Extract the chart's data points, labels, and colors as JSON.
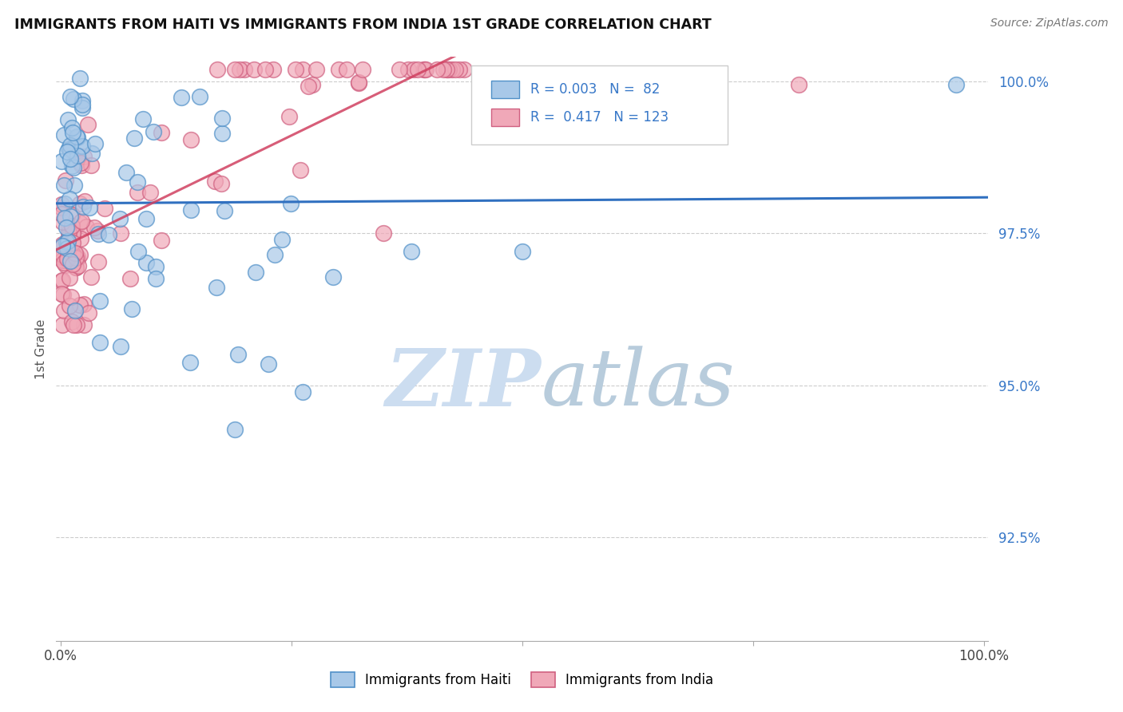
{
  "title": "IMMIGRANTS FROM HAITI VS IMMIGRANTS FROM INDIA 1ST GRADE CORRELATION CHART",
  "source": "Source: ZipAtlas.com",
  "ylabel": "1st Grade",
  "ylim": [
    0.908,
    1.004
  ],
  "yticks": [
    0.925,
    0.95,
    0.975,
    1.0
  ],
  "ytick_labels": [
    "92.5%",
    "95.0%",
    "97.5%",
    "100.0%"
  ],
  "xlim": [
    -0.005,
    1.005
  ],
  "xticks": [
    0.0,
    0.25,
    0.5,
    0.75,
    1.0
  ],
  "xtick_labels": [
    "0.0%",
    "",
    "",
    "",
    "100.0%"
  ],
  "legend_r_haiti": "0.003",
  "legend_n_haiti": "82",
  "legend_r_india": "0.417",
  "legend_n_india": "123",
  "haiti_fill_color": "#a8c8e8",
  "india_fill_color": "#f0a8b8",
  "haiti_edge_color": "#5090c8",
  "india_edge_color": "#d06080",
  "haiti_line_color": "#3070c0",
  "india_line_color": "#d04060",
  "legend_haiti_fill": "#a8c8e8",
  "legend_india_fill": "#f0a8b8",
  "legend_haiti_edge": "#5090c8",
  "legend_india_edge": "#d06080",
  "text_blue": "#3878c8",
  "watermark_zip_color": "#ccddf0",
  "watermark_atlas_color": "#b8ccdc"
}
